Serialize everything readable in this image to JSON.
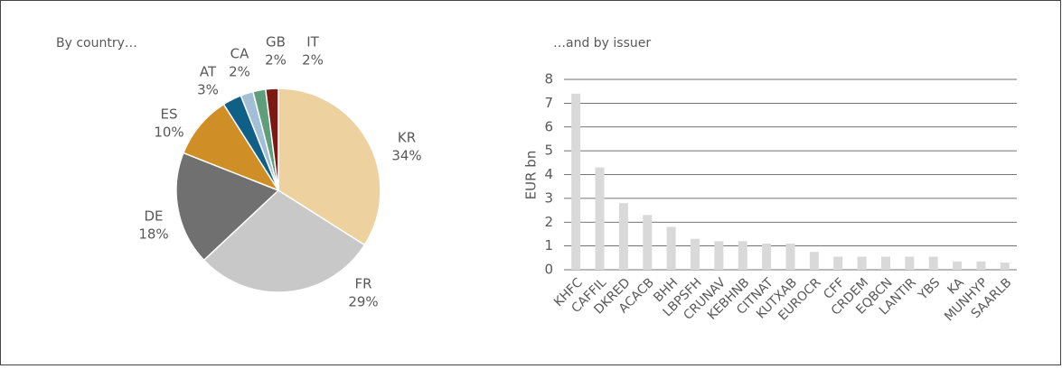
{
  "chart_data": [
    {
      "type": "pie",
      "title": "By country…",
      "categories": [
        "KR",
        "FR",
        "DE",
        "ES",
        "AT",
        "CA",
        "GB",
        "IT"
      ],
      "values": [
        34,
        29,
        18,
        10,
        3,
        2,
        2,
        2
      ],
      "value_labels": [
        "34%",
        "29%",
        "18%",
        "10%",
        "3%",
        "2%",
        "2%",
        "2%"
      ],
      "colors": [
        "#edd2a0",
        "#c8c8c8",
        "#707070",
        "#d08e26",
        "#0f5f86",
        "#a3bfd6",
        "#5f9e7a",
        "#7a1a12"
      ]
    },
    {
      "type": "bar",
      "title": "…and by issuer",
      "ylabel": "EUR bn",
      "categories": [
        "KHFC",
        "CAFFIL",
        "DKRED",
        "ACACB",
        "BHH",
        "LBPSFH",
        "CRUNAV",
        "KEBHNB",
        "CITNAT",
        "KUTXAB",
        "EUROCR",
        "CFF",
        "CRDEM",
        "EQBCN",
        "LANTIR",
        "YBS",
        "KA",
        "MUNHYP",
        "SAARLB"
      ],
      "values": [
        7.4,
        4.3,
        2.8,
        2.3,
        1.8,
        1.3,
        1.2,
        1.2,
        1.1,
        1.1,
        0.75,
        0.55,
        0.55,
        0.55,
        0.55,
        0.55,
        0.35,
        0.35,
        0.3
      ],
      "color": "#d9d9d9",
      "ylim": [
        0,
        8
      ],
      "yticks": [
        0,
        1,
        2,
        3,
        4,
        5,
        6,
        7,
        8
      ],
      "grid": true
    }
  ]
}
